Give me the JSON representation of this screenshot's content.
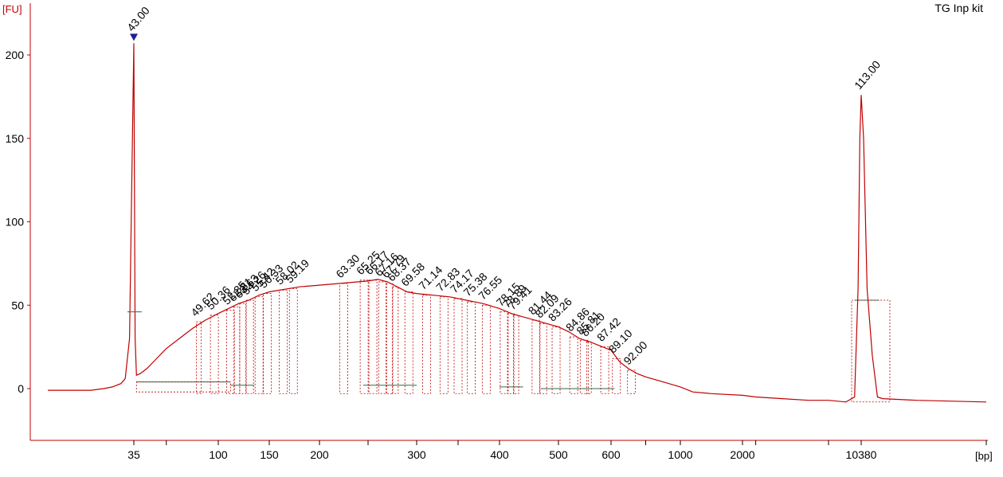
{
  "kit_title": "TG Inp kit",
  "colors": {
    "trace": "#c00000",
    "axis": "#c00000",
    "baseline_green": "#2e6b4f",
    "lower_marker_label": "#2a8a2a",
    "upper_marker_label": "#9933cc",
    "marker_triangle": "#1f1f8f",
    "peak_label": "#000000"
  },
  "chart_data": {
    "type": "line",
    "title": "TG Inp kit",
    "ylabel": "[FU]",
    "xlabel": "[bp]",
    "ylim": [
      -30,
      225
    ],
    "y_ticks": [
      0,
      50,
      100,
      150,
      200
    ],
    "x_ticks": [
      {
        "label": "35",
        "bp": 35
      },
      {
        "label": "100",
        "bp": 100
      },
      {
        "label": "150",
        "bp": 150
      },
      {
        "label": "200",
        "bp": 200
      },
      {
        "label": "300",
        "bp": 300
      },
      {
        "label": "400",
        "bp": 400
      },
      {
        "label": "500",
        "bp": 500
      },
      {
        "label": "600",
        "bp": 600
      },
      {
        "label": "1000",
        "bp": 1000
      },
      {
        "label": "2000",
        "bp": 2000
      },
      {
        "label": "10380",
        "bp": 10380
      }
    ],
    "markers": [
      {
        "label": "43.00",
        "bp": 35,
        "fu": 207,
        "kind": "lower"
      },
      {
        "label": "113.00",
        "bp": 10380,
        "fu": 176,
        "kind": "upper"
      }
    ],
    "peaks": [
      {
        "label": "49.62",
        "bp": 85,
        "fu": 40
      },
      {
        "label": "50.36",
        "bp": 97,
        "fu": 44
      },
      {
        "label": "52.35",
        "bp": 112,
        "fu": 47
      },
      {
        "label": "52.81",
        "bp": 118,
        "fu": 49
      },
      {
        "label": "53.63",
        "bp": 124,
        "fu": 51
      },
      {
        "label": "54.26",
        "bp": 131,
        "fu": 53
      },
      {
        "label": "55.42",
        "bp": 140,
        "fu": 55
      },
      {
        "label": "56.33",
        "bp": 148,
        "fu": 57
      },
      {
        "label": "58.02",
        "bp": 164,
        "fu": 59
      },
      {
        "label": "59.19",
        "bp": 174,
        "fu": 60
      },
      {
        "label": "63.30",
        "bp": 225,
        "fu": 63
      },
      {
        "label": "65.25",
        "bp": 246,
        "fu": 65
      },
      {
        "label": "66.17",
        "bp": 255,
        "fu": 65
      },
      {
        "label": "67.16",
        "bp": 265,
        "fu": 64
      },
      {
        "label": "67.79",
        "bp": 272,
        "fu": 63
      },
      {
        "label": "68.37",
        "bp": 278,
        "fu": 61
      },
      {
        "label": "69.58",
        "bp": 292,
        "fu": 58
      },
      {
        "label": "71.14",
        "bp": 312,
        "fu": 56
      },
      {
        "label": "72.83",
        "bp": 333,
        "fu": 55
      },
      {
        "label": "74.17",
        "bp": 350,
        "fu": 54
      },
      {
        "label": "75.38",
        "bp": 366,
        "fu": 52
      },
      {
        "label": "76.55",
        "bp": 384,
        "fu": 50
      },
      {
        "label": "78.15",
        "bp": 408,
        "fu": 46
      },
      {
        "label": "78.89",
        "bp": 419,
        "fu": 45
      },
      {
        "label": "79.41",
        "bp": 428,
        "fu": 44
      },
      {
        "label": "81.44",
        "bp": 462,
        "fu": 41
      },
      {
        "label": "82.09",
        "bp": 474,
        "fu": 39
      },
      {
        "label": "83.26",
        "bp": 496,
        "fu": 37
      },
      {
        "label": "84.86",
        "bp": 529,
        "fu": 31
      },
      {
        "label": "85.81",
        "bp": 549,
        "fu": 29
      },
      {
        "label": "86.20",
        "bp": 558,
        "fu": 28
      },
      {
        "label": "87.42",
        "bp": 588,
        "fu": 25
      },
      {
        "label": "89.10",
        "bp": 631,
        "fu": 18
      },
      {
        "label": "92.00",
        "bp": 718,
        "fu": 11
      }
    ],
    "trace": [
      [
        15,
        -1
      ],
      [
        20,
        -1
      ],
      [
        25,
        -1
      ],
      [
        28,
        0
      ],
      [
        30,
        1
      ],
      [
        32,
        3
      ],
      [
        33,
        6
      ],
      [
        34,
        30
      ],
      [
        34.5,
        120
      ],
      [
        35,
        207
      ],
      [
        35.5,
        120
      ],
      [
        36,
        30
      ],
      [
        37,
        8
      ],
      [
        40,
        9
      ],
      [
        45,
        12
      ],
      [
        50,
        16
      ],
      [
        60,
        24
      ],
      [
        70,
        30
      ],
      [
        80,
        36
      ],
      [
        90,
        41
      ],
      [
        100,
        45
      ],
      [
        110,
        48
      ],
      [
        120,
        51
      ],
      [
        130,
        53
      ],
      [
        140,
        56
      ],
      [
        150,
        58
      ],
      [
        160,
        59
      ],
      [
        170,
        60
      ],
      [
        180,
        61
      ],
      [
        200,
        62
      ],
      [
        220,
        63
      ],
      [
        240,
        64
      ],
      [
        250,
        64.5
      ],
      [
        260,
        65.5
      ],
      [
        270,
        64
      ],
      [
        280,
        61
      ],
      [
        290,
        58
      ],
      [
        300,
        57
      ],
      [
        320,
        56
      ],
      [
        340,
        55
      ],
      [
        360,
        53
      ],
      [
        380,
        51
      ],
      [
        400,
        48
      ],
      [
        420,
        45
      ],
      [
        440,
        43
      ],
      [
        460,
        41
      ],
      [
        480,
        39
      ],
      [
        500,
        37
      ],
      [
        520,
        34
      ],
      [
        540,
        30
      ],
      [
        560,
        28
      ],
      [
        600,
        23
      ],
      [
        650,
        16
      ],
      [
        700,
        12
      ],
      [
        750,
        9
      ],
      [
        800,
        7
      ],
      [
        900,
        4
      ],
      [
        1000,
        1
      ],
      [
        1200,
        -2
      ],
      [
        1500,
        -3
      ],
      [
        2000,
        -4
      ],
      [
        3000,
        -5
      ],
      [
        5000,
        -6
      ],
      [
        7000,
        -7
      ],
      [
        8500,
        -7
      ],
      [
        9500,
        -8
      ],
      [
        10000,
        -5
      ],
      [
        10200,
        60
      ],
      [
        10300,
        150
      ],
      [
        10380,
        176
      ],
      [
        10450,
        150
      ],
      [
        10550,
        60
      ],
      [
        10700,
        20
      ],
      [
        10850,
        -5
      ],
      [
        11000,
        -6
      ],
      [
        12000,
        -7
      ],
      [
        14000,
        -8
      ]
    ],
    "baseline_segments": [
      {
        "from_bp": 37,
        "to_bp": 112,
        "fu": 4
      },
      {
        "from_bp": 112,
        "to_bp": 135,
        "fu": 2
      },
      {
        "from_bp": 245,
        "to_bp": 300,
        "fu": 2
      },
      {
        "from_bp": 400,
        "to_bp": 440,
        "fu": 1
      },
      {
        "from_bp": 470,
        "to_bp": 620,
        "fu": 0
      },
      {
        "from_bp": 10000,
        "to_bp": 10900,
        "fu": 53
      }
    ],
    "marker_hlines": [
      {
        "bp": 35,
        "fu": 46
      }
    ],
    "grid": false,
    "legend": "none"
  }
}
